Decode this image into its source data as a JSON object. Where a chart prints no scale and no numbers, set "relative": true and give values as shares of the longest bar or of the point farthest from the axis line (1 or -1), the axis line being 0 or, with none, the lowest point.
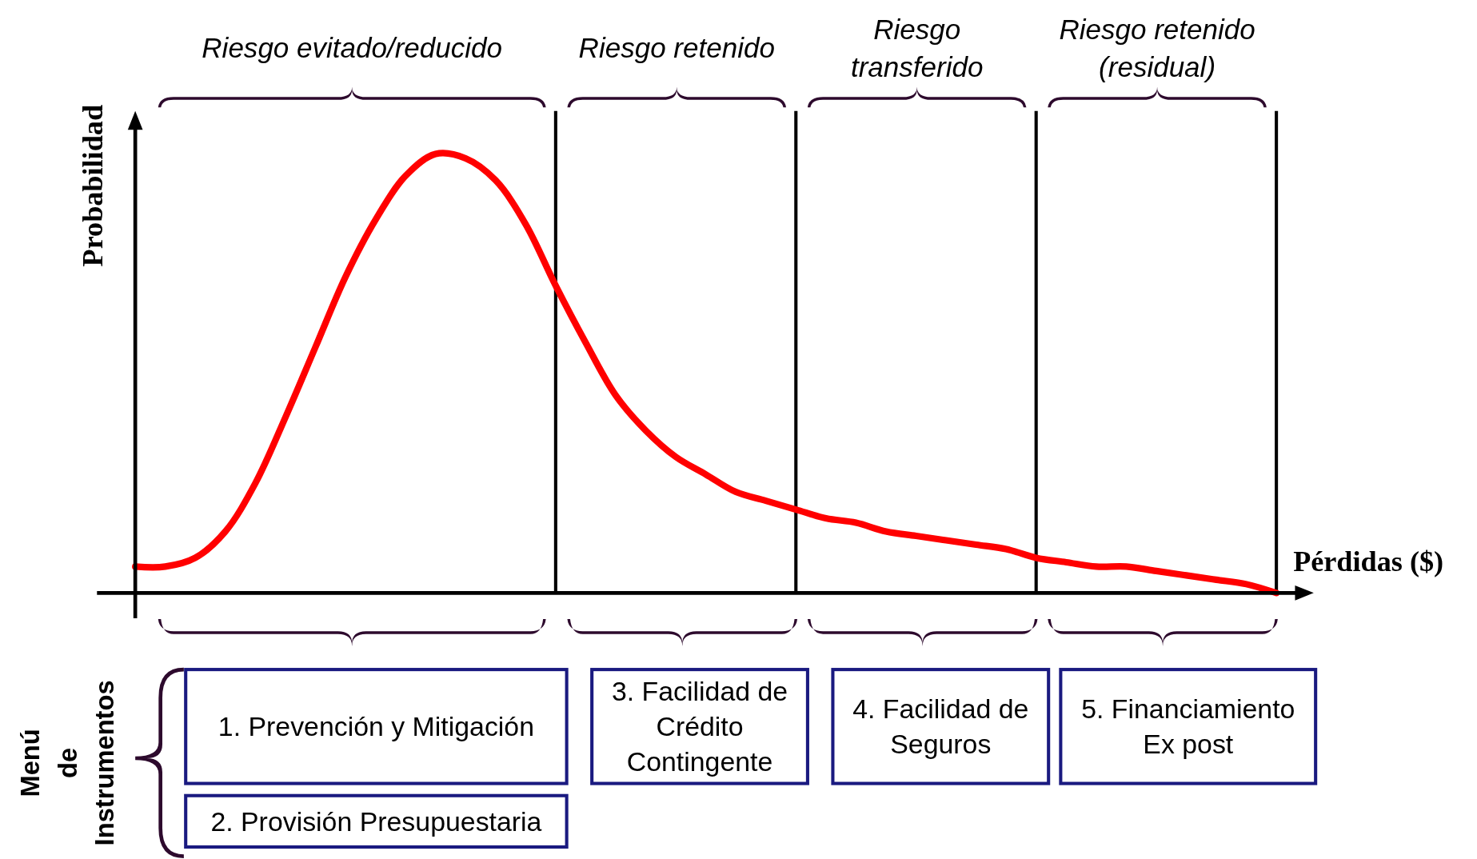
{
  "chart_data": {
    "type": "line",
    "relative": true,
    "grid": "x",
    "xlabel": "Pérdidas ($)",
    "ylabel": "Probabilidad",
    "categories": [
      null,
      null,
      null,
      null,
      null,
      null,
      null,
      null,
      null,
      null,
      null,
      null,
      null,
      null,
      null,
      null,
      null,
      null,
      null,
      null,
      null,
      null,
      null,
      null,
      null,
      null,
      null,
      null,
      null,
      null,
      null,
      null,
      null,
      null,
      null,
      null,
      null,
      null,
      null
    ],
    "series": [
      {
        "color": "#ff0000",
        "values": [
          0.06,
          0.06,
          0.08,
          0.14,
          0.25,
          0.4,
          0.56,
          0.72,
          0.85,
          0.95,
          1,
          0.99,
          0.94,
          0.84,
          0.7,
          0.57,
          0.45,
          0.37,
          0.31,
          0.27,
          0.23,
          0.21,
          0.19,
          0.17,
          0.16,
          0.14,
          0.13,
          0.12,
          0.11,
          0.1,
          0.08,
          0.07,
          0.06,
          0.06,
          0.05,
          0.04,
          0.03,
          0.02,
          0
        ]
      }
    ],
    "annotations": [
      "Riesgo evitado/reducido",
      "Riesgo retenido",
      "Riesgo transferido",
      "Riesgo retenido (residual)",
      "Menú de Instrumentos",
      "1. Prevención y Mitigación",
      "2. Provisión Presupuestaria",
      "3. Facilidad de Crédito Contingente",
      "4. Facilidad de Seguros",
      "5. Financiamiento Ex post"
    ]
  }
}
